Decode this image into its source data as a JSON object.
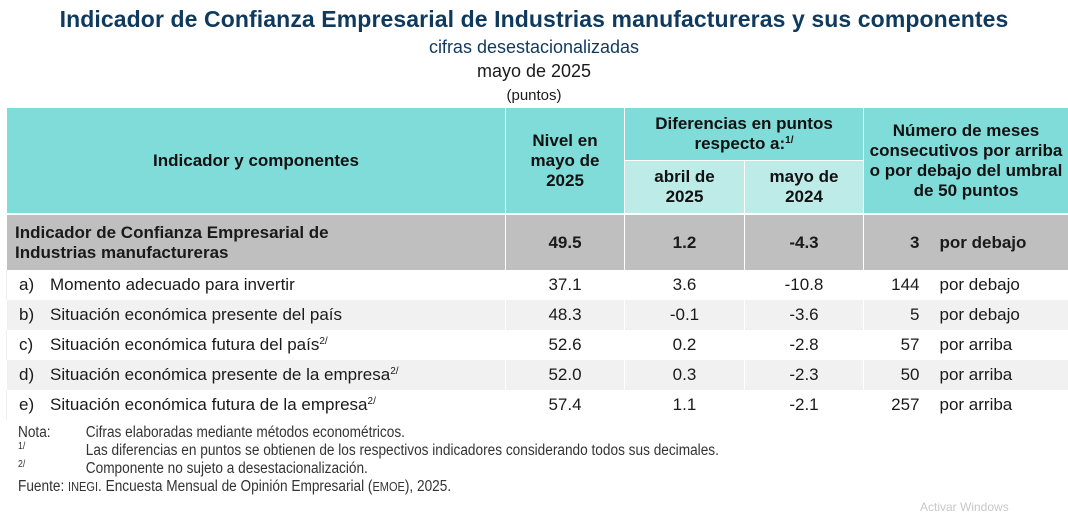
{
  "header": {
    "title": "Indicador de Confianza Empresarial de Industrias manufactureras y sus componentes",
    "subtitle": "cifras desestacionalizadas",
    "period": "mayo de 2025",
    "units": "(puntos)"
  },
  "table": {
    "columns": {
      "indicator": "Indicador y componentes",
      "level": "Nivel en mayo de 2025",
      "differences": "Diferencias en puntos respecto a:",
      "differences_footnote": "1/",
      "diff_april": "abril de 2025",
      "diff_may": "mayo de 2024",
      "months": "Número de meses consecutivos por arriba o por debajo del umbral de 50 puntos"
    },
    "main_row": {
      "name": "Indicador de Confianza Empresarial de Industrias manufactureras",
      "level": "49.5",
      "diff_april": "1.2",
      "diff_may": "-4.3",
      "months": "3",
      "direction": "por debajo"
    },
    "rows": [
      {
        "letter": "a)",
        "name": "Momento adecuado para invertir",
        "footnote": "",
        "level": "37.1",
        "diff_april": "3.6",
        "diff_may": "-10.8",
        "months": "144",
        "direction": "por debajo"
      },
      {
        "letter": "b)",
        "name": "Situación económica presente del país",
        "footnote": "",
        "level": "48.3",
        "diff_april": "-0.1",
        "diff_may": "-3.6",
        "months": "5",
        "direction": "por debajo"
      },
      {
        "letter": "c)",
        "name": "Situación económica futura del país",
        "footnote": "2/",
        "level": "52.6",
        "diff_april": "0.2",
        "diff_may": "-2.8",
        "months": "57",
        "direction": "por arriba"
      },
      {
        "letter": "d)",
        "name": "Situación económica presente de la empresa",
        "footnote": "2/",
        "level": "52.0",
        "diff_april": "0.3",
        "diff_may": "-2.3",
        "months": "50",
        "direction": "por arriba"
      },
      {
        "letter": "e)",
        "name": "Situación económica futura de la empresa",
        "footnote": "2/",
        "level": "57.4",
        "diff_april": "1.1",
        "diff_may": "-2.1",
        "months": "257",
        "direction": "por arriba"
      }
    ]
  },
  "notes": {
    "nota_label": "Nota:",
    "nota_text": "Cifras elaboradas mediante métodos econométricos.",
    "fn1_label": "1/",
    "fn1_text": "Las diferencias en puntos se obtienen de los respectivos indicadores considerando todos sus decimales.",
    "fn2_label": "2/",
    "fn2_text": "Componente no sujeto a desestacionalización.",
    "source_label": "Fuente:",
    "source_org": "INEGI",
    "source_text_1": ". Encuesta Mensual de Opinión Empresarial (",
    "source_abbr": "EMOE",
    "source_text_2": "), 2025."
  },
  "watermark": "Activar Windows",
  "colors": {
    "title": "#0f3a5e",
    "header_bg": "#80dcd8",
    "subheader_bg": "#bdebe8",
    "main_row_bg": "#bfbfbf",
    "alt_row_bg": "#f1f1f1"
  }
}
